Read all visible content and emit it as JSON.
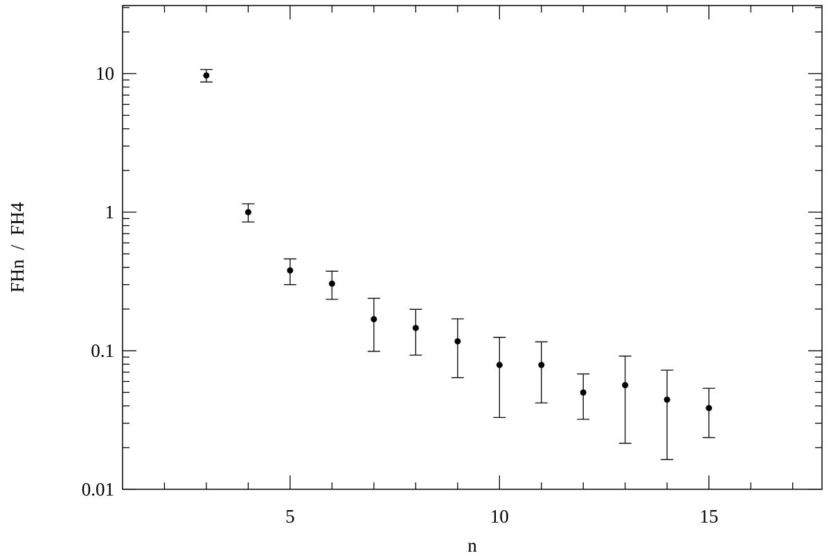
{
  "chart_data": {
    "type": "scatter",
    "xlabel": "n",
    "ylabel": "FHn  /  FH4",
    "x": [
      3,
      4,
      5,
      6,
      7,
      8,
      9,
      10,
      11,
      12,
      13,
      14,
      15
    ],
    "values": [
      9.7,
      1.0,
      0.38,
      0.305,
      0.169,
      0.146,
      0.117,
      0.079,
      0.079,
      0.05,
      0.0565,
      0.0444,
      0.0386
    ],
    "errors": [
      1.0,
      0.15,
      0.08,
      0.07,
      0.07,
      0.053,
      0.053,
      0.046,
      0.037,
      0.018,
      0.035,
      0.028,
      0.015
    ],
    "color": "#000000",
    "xlim": [
      1,
      17.7
    ],
    "xticks": [
      5,
      10,
      15
    ],
    "xminorticks": [
      2,
      3,
      4,
      6,
      7,
      8,
      9,
      11,
      12,
      13,
      14,
      16,
      17
    ],
    "ylim": [
      0.01,
      31
    ],
    "ylog": true,
    "yticks": [
      {
        "value": 0.01,
        "label": "0.01"
      },
      {
        "value": 0.1,
        "label": "0.1"
      },
      1,
      10
    ],
    "yminorticks": [
      0.02,
      0.03,
      0.04,
      0.05,
      0.06,
      0.07,
      0.08,
      0.09,
      0.2,
      0.3,
      0.4,
      0.5,
      0.6,
      0.7,
      0.8,
      0.9,
      2,
      3,
      4,
      5,
      6,
      7,
      8,
      9,
      20,
      30
    ]
  }
}
